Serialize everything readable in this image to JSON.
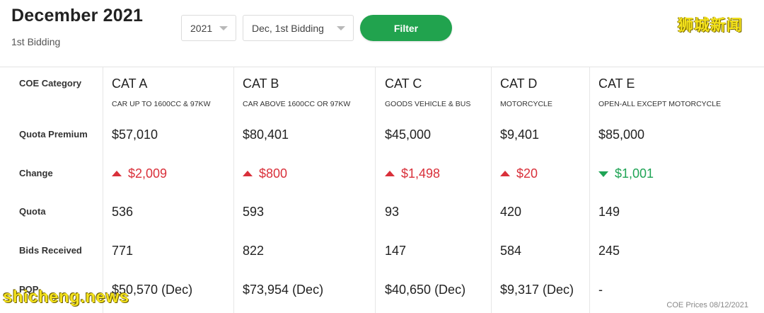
{
  "header": {
    "title": "December 2021",
    "subtitle": "1st Bidding",
    "year_select": "2021",
    "bidding_select": "Dec, 1st Bidding",
    "filter_label": "Filter"
  },
  "watermarks": {
    "top": "狮城新闻",
    "bottom": "shicheng.news"
  },
  "row_labels": {
    "category": "COE Category",
    "premium": "Quota Premium",
    "change": "Change",
    "quota": "Quota",
    "bids": "Bids Received",
    "pqp": "PQP"
  },
  "categories": [
    {
      "name": "CAT A",
      "desc": "CAR UP TO 1600CC & 97KW",
      "premium": "$57,010",
      "change": "$2,009",
      "direction": "up",
      "quota": "536",
      "bids": "771",
      "pqp": "$50,570 (Dec)"
    },
    {
      "name": "CAT B",
      "desc": "CAR ABOVE 1600CC OR 97KW",
      "premium": "$80,401",
      "change": "$800",
      "direction": "up",
      "quota": "593",
      "bids": "822",
      "pqp": "$73,954 (Dec)"
    },
    {
      "name": "CAT C",
      "desc": "GOODS VEHICLE & BUS",
      "premium": "$45,000",
      "change": "$1,498",
      "direction": "up",
      "quota": "93",
      "bids": "147",
      "pqp": "$40,650 (Dec)"
    },
    {
      "name": "CAT D",
      "desc": "MOTORCYCLE",
      "premium": "$9,401",
      "change": "$20",
      "direction": "up",
      "quota": "420",
      "bids": "584",
      "pqp": "$9,317 (Dec)"
    },
    {
      "name": "CAT E",
      "desc": "OPEN-ALL EXCEPT MOTORCYCLE",
      "premium": "$85,000",
      "change": "$1,001",
      "direction": "down",
      "quota": "149",
      "bids": "245",
      "pqp": "-"
    }
  ],
  "footer": {
    "note": "COE Prices 08/12/2021"
  },
  "colors": {
    "filter_button": "#21a34e",
    "change_up": "#d9303a",
    "change_down": "#1fa455",
    "watermark": "#f4e21d"
  }
}
